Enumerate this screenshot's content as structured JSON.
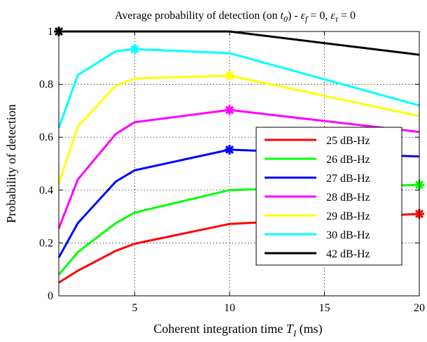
{
  "chart_data": {
    "type": "line",
    "title_parts": {
      "prefix": "Average probability of detection (on ",
      "t_symbol": "t",
      "t_sub": "0",
      "middle": ") - ",
      "ef_symbol": "ε",
      "ef_sub": "f",
      "ef_val": " = 0, ",
      "et_symbol": "ε",
      "et_sub": "τ",
      "et_val": " = 0"
    },
    "xlabel_parts": {
      "prefix": "Coherent integration time ",
      "symbol": "T",
      "sub": "I",
      "suffix": " (ms)"
    },
    "ylabel": "Probability of detection",
    "xlim": [
      1,
      20
    ],
    "ylim": [
      0,
      1
    ],
    "xticks": [
      5,
      10,
      15,
      20
    ],
    "yticks": [
      0,
      0.2,
      0.4,
      0.6,
      0.8,
      1
    ],
    "ytick_labels": [
      "0",
      "0.2",
      "0.4",
      "0.6",
      "0.8",
      "1"
    ],
    "grid": true,
    "legend_position": "lower-right",
    "series": [
      {
        "name": "25 dB-Hz",
        "color": "#ff0000",
        "x": [
          1,
          2,
          4,
          5,
          10,
          20
        ],
        "y": [
          0.05,
          0.095,
          0.17,
          0.197,
          0.272,
          0.31
        ],
        "marker": {
          "x": 20,
          "y": 0.31
        }
      },
      {
        "name": "26 dB-Hz",
        "color": "#00ff00",
        "x": [
          1,
          2,
          4,
          5,
          10,
          20
        ],
        "y": [
          0.08,
          0.165,
          0.275,
          0.315,
          0.4,
          0.42
        ],
        "marker": {
          "x": 20,
          "y": 0.42
        }
      },
      {
        "name": "27 dB-Hz",
        "color": "#0000ff",
        "x": [
          1,
          2,
          4,
          5,
          10,
          20
        ],
        "y": [
          0.145,
          0.275,
          0.432,
          0.475,
          0.553,
          0.527
        ],
        "marker": {
          "x": 10,
          "y": 0.553
        }
      },
      {
        "name": "28 dB-Hz",
        "color": "#ff00ff",
        "x": [
          1,
          2,
          4,
          5,
          10,
          20
        ],
        "y": [
          0.255,
          0.44,
          0.612,
          0.657,
          0.703,
          0.62
        ],
        "marker": {
          "x": 10,
          "y": 0.703
        }
      },
      {
        "name": "29 dB-Hz",
        "color": "#ffff00",
        "x": [
          1,
          2,
          4,
          5,
          10,
          20
        ],
        "y": [
          0.425,
          0.64,
          0.795,
          0.822,
          0.833,
          0.68
        ],
        "marker": {
          "x": 10,
          "y": 0.833
        }
      },
      {
        "name": "30 dB-Hz",
        "color": "#00ffff",
        "x": [
          1,
          2,
          4,
          5,
          10,
          20
        ],
        "y": [
          0.635,
          0.835,
          0.925,
          0.933,
          0.918,
          0.72
        ],
        "marker": {
          "x": 5,
          "y": 0.933
        }
      },
      {
        "name": "42 dB-Hz",
        "color": "#000000",
        "x": [
          1,
          2,
          4,
          5,
          10,
          20
        ],
        "y": [
          1.0,
          1.0,
          1.0,
          1.0,
          1.0,
          0.912
        ],
        "marker": {
          "x": 1,
          "y": 1.0
        }
      }
    ]
  }
}
